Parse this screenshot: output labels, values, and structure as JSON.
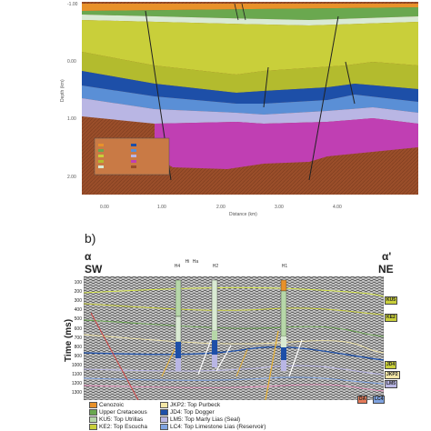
{
  "panel_a": {
    "y_axis_label": "Depth (km)",
    "y_ticks": [
      "-1.00",
      "0.00",
      "1.00",
      "2.00"
    ],
    "x_axis_label": "Distance (km)",
    "x_ticks": [
      "0.00",
      "1.00",
      "2.00",
      "3.00",
      "4.00"
    ],
    "colors": {
      "cenozoic": "#e8912a",
      "upper_cretaceous": "#6aa84f",
      "yellow_green": "#c9cf3a",
      "olive": "#b3bb2e",
      "blue_dark": "#1d4fa8",
      "blue_light": "#5a8fd6",
      "lilac": "#b9b6e4",
      "magenta": "#c03fb3",
      "basement": "#9a4e2a"
    }
  },
  "panel_b": {
    "label": "b)",
    "left_end": "α",
    "right_end": "α'",
    "left_direction": "SW",
    "right_direction": "NE",
    "y_axis_label": "Time (ms)",
    "y_ticks": [
      "100",
      "200",
      "300",
      "400",
      "500",
      "600",
      "700",
      "800",
      "900",
      "1000",
      "1100",
      "1200",
      "1300"
    ],
    "wells": [
      "H4",
      "Hi",
      "Ha",
      "H2",
      "H1"
    ],
    "horizon_labels": [
      "KU5",
      "KE2",
      "JD4",
      "JKP2",
      "LM5",
      "LC4"
    ],
    "fault_label": "DA",
    "legend": [
      {
        "text": "Cenozoic",
        "color": "#e8912a"
      },
      {
        "text": "Upper Cretaceous",
        "color": "#6aa84f"
      },
      {
        "text": "KU5: Top Utrillas",
        "color": "#b6d7a8"
      },
      {
        "text": "KE2: Top Escucha",
        "color": "#c9cf3a"
      },
      {
        "text": "JKP2: Top Purbeck",
        "color": "#f3e6a6"
      },
      {
        "text": "JD4: Top Dogger",
        "color": "#1d4fa8"
      },
      {
        "text": "LM5: Top Marly Lias (Seal)",
        "color": "#b9b6e4"
      },
      {
        "text": "LC4: Top Limestone Lias (Reservoir)",
        "color": "#7fa3e0"
      }
    ]
  }
}
